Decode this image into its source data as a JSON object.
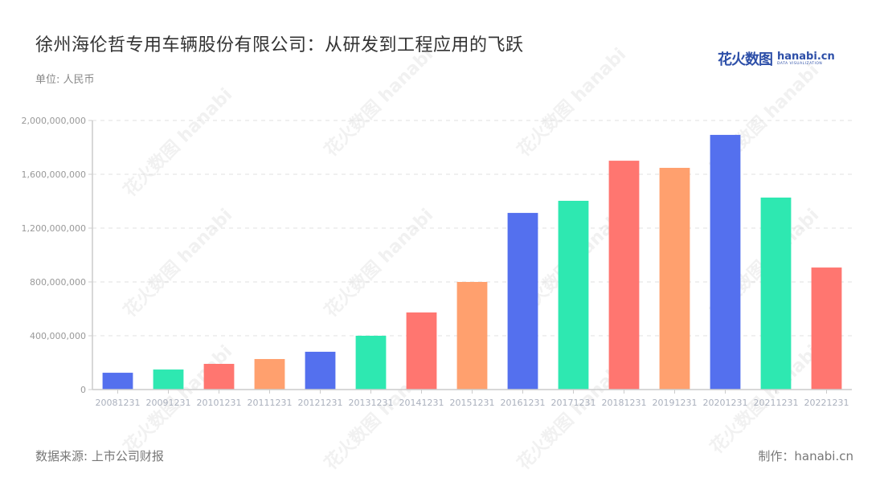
{
  "header": {
    "title": "徐州海伦哲专用车辆股份有限公司：从研发到工程应用的飞跃",
    "unit": "单位: 人民币"
  },
  "logo": {
    "cn": "花火数图",
    "en": "hanabi.cn",
    "tagline": "DATA VISUALIZATION"
  },
  "footer": {
    "source": "数据来源: 上市公司财报",
    "credit": "制作：hanabi.cn"
  },
  "colors": {
    "blue": "#5470ee",
    "green": "#2ee8b1",
    "red": "#ff7670",
    "orange": "#ffa06e",
    "grid": "#e0e0e0",
    "axis": "#cccccc",
    "tick_label": "#999999"
  },
  "chart_data": {
    "type": "bar",
    "title": "徐州海伦哲专用车辆股份有限公司：从研发到工程应用的飞跃",
    "xlabel": "",
    "ylabel": "单位: 人民币",
    "categories": [
      "20081231",
      "20091231",
      "20101231",
      "20111231",
      "20121231",
      "20131231",
      "20141231",
      "20151231",
      "20161231",
      "20171231",
      "20181231",
      "20191231",
      "20201231",
      "20211231",
      "20221231"
    ],
    "values": [
      125000000,
      149000000,
      191000000,
      227000000,
      281000000,
      400000000,
      573000000,
      800000000,
      1313000000,
      1403000000,
      1701000000,
      1648000000,
      1893000000,
      1427000000,
      907000000
    ],
    "bar_colors": [
      "#5470ee",
      "#2ee8b1",
      "#ff7670",
      "#ffa06e",
      "#5470ee",
      "#2ee8b1",
      "#ff7670",
      "#ffa06e",
      "#5470ee",
      "#2ee8b1",
      "#ff7670",
      "#ffa06e",
      "#5470ee",
      "#2ee8b1",
      "#ff7670"
    ],
    "ylim": [
      0,
      2000000000
    ],
    "yticks": [
      0,
      400000000,
      800000000,
      1200000000,
      1600000000,
      2000000000
    ],
    "ytick_labels": [
      "0",
      "400,000,000",
      "800,000,000",
      "1,200,000,000",
      "1,600,000,000",
      "2,000,000,000"
    ],
    "grid": true,
    "legend": null
  }
}
